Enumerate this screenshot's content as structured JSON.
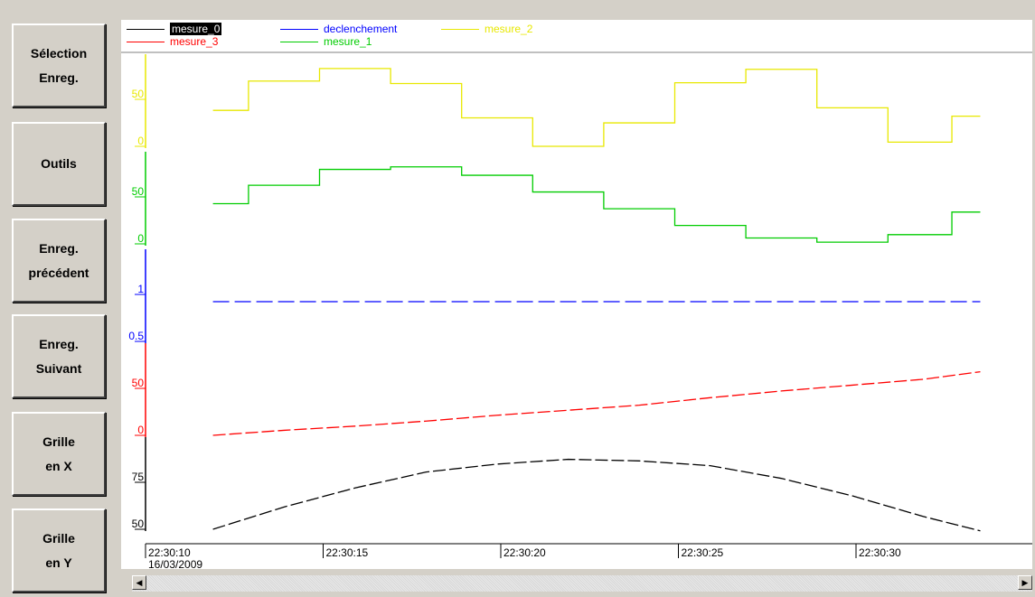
{
  "sidebar": {
    "buttons": [
      {
        "line1": "Sélection",
        "line2": "Enreg."
      },
      {
        "line1": "Outils",
        "line2": ""
      },
      {
        "line1": "Enreg.",
        "line2": "précédent"
      },
      {
        "line1": "Enreg.",
        "line2": "Suivant"
      },
      {
        "line1": "Grille",
        "line2": "en X"
      },
      {
        "line1": "Grille",
        "line2": "en Y"
      }
    ]
  },
  "colors": {
    "mesure_0": "#000000",
    "mesure_1": "#00cc00",
    "mesure_2": "#e8e800",
    "mesure_3": "#ff0000",
    "declenchement": "#0000ff",
    "axis": "#000000"
  },
  "chart_data": {
    "type": "line",
    "legend": [
      {
        "name": "mesure_0",
        "color": "#000000",
        "selected": true
      },
      {
        "name": "declenchement",
        "color": "#0000ff"
      },
      {
        "name": "mesure_2",
        "color": "#e8e800"
      },
      {
        "name": "mesure_3",
        "color": "#ff0000"
      },
      {
        "name": "mesure_1",
        "color": "#00cc00"
      }
    ],
    "x_axis": {
      "ticks": [
        "22:30:10",
        "22:30:15",
        "22:30:20",
        "22:30:25",
        "22:30:30"
      ],
      "date": "16/03/2009",
      "range": [
        10,
        33.8
      ]
    },
    "bands": [
      {
        "series": "mesure_2",
        "ticks": [
          "50",
          "0"
        ],
        "range": [
          0,
          95
        ]
      },
      {
        "series": "mesure_1",
        "ticks": [
          "50",
          "0"
        ],
        "range": [
          0,
          95
        ]
      },
      {
        "series": "declenchement",
        "ticks": [
          "1",
          "0.5"
        ],
        "range": [
          0,
          2
        ]
      },
      {
        "series": "mesure_3",
        "ticks": [
          "50",
          "0"
        ],
        "range": [
          0,
          95
        ]
      },
      {
        "series": "mesure_0",
        "ticks": [
          "75",
          "50"
        ],
        "range": [
          50,
          100
        ]
      }
    ],
    "series": [
      {
        "name": "mesure_2",
        "step": true,
        "x": [
          12,
          14,
          16,
          18,
          20,
          22,
          24,
          26,
          28,
          30,
          32,
          33.6
        ],
        "values": [
          43,
          78,
          93,
          75,
          34,
          0,
          28,
          76,
          92,
          46,
          5,
          36
        ]
      },
      {
        "name": "mesure_1",
        "step": true,
        "x": [
          12,
          14,
          16,
          18,
          20,
          22,
          24,
          26,
          28,
          30,
          32,
          33.6
        ],
        "values": [
          48,
          70,
          89,
          92,
          82,
          62,
          42,
          22,
          7,
          2,
          11,
          38
        ]
      },
      {
        "name": "declenchement",
        "dashed": true,
        "x": [
          12,
          33.6
        ],
        "values": [
          1,
          1
        ]
      },
      {
        "name": "mesure_3",
        "dashed": true,
        "x": [
          12,
          14,
          16,
          18,
          20,
          22,
          24,
          26,
          28,
          30,
          32,
          33.6
        ],
        "values": [
          0,
          6,
          11,
          17,
          24,
          30,
          36,
          45,
          53,
          60,
          67,
          76
        ]
      },
      {
        "name": "mesure_0",
        "dashed": true,
        "x": [
          12,
          14,
          16,
          18,
          20,
          22,
          24,
          26,
          28,
          30,
          32,
          33.6
        ],
        "values": [
          50,
          64,
          76,
          86,
          91,
          94,
          93,
          90,
          82,
          71,
          58,
          49
        ]
      }
    ]
  }
}
